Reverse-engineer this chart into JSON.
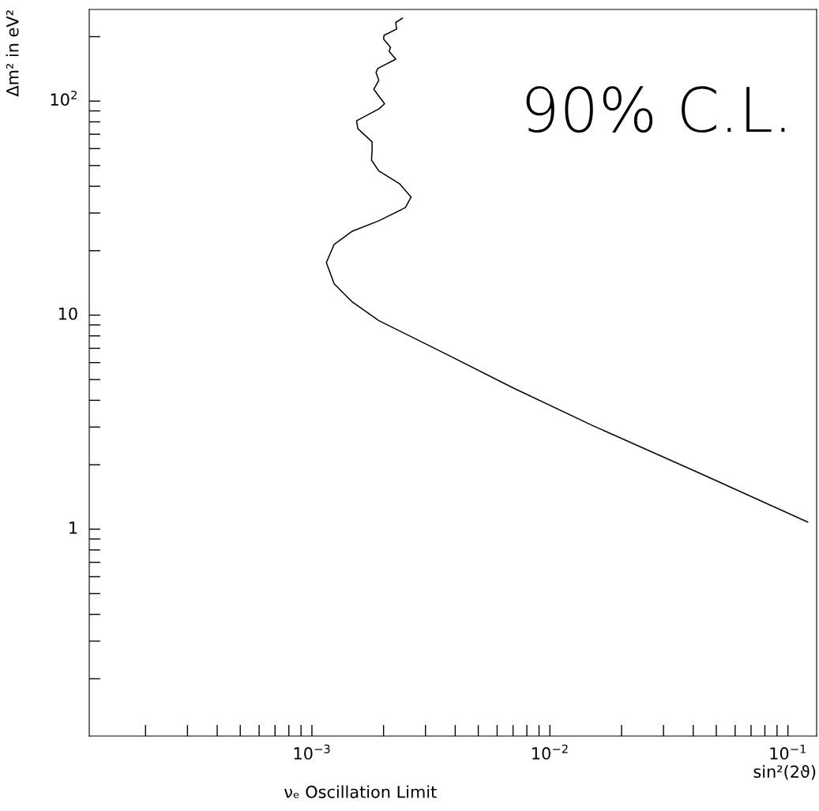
{
  "chart_data": {
    "type": "line",
    "xlabel": "sin²(2ϑ)",
    "ylabel": "Δm² in eV²",
    "annotations": [
      "νₑ Oscillation Limit",
      "90% C.L."
    ],
    "log": "xy",
    "grid": false,
    "marker": "none",
    "line_style": "solid",
    "xlim": [
      0.000116,
      0.132
    ],
    "ylim": [
      0.108,
      268
    ],
    "xticks": [
      {
        "value": 0.0002,
        "label": null
      },
      {
        "value": 0.0003,
        "label": null
      },
      {
        "value": 0.0004,
        "label": null
      },
      {
        "value": 0.0005,
        "label": null
      },
      {
        "value": 0.0006,
        "label": null
      },
      {
        "value": 0.0007,
        "label": null
      },
      {
        "value": 0.0008,
        "label": null
      },
      {
        "value": 0.0009,
        "label": null
      },
      {
        "value": 0.001,
        "label": "10$^{−3}$"
      },
      {
        "value": 0.002,
        "label": null
      },
      {
        "value": 0.003,
        "label": null
      },
      {
        "value": 0.004,
        "label": null
      },
      {
        "value": 0.005,
        "label": null
      },
      {
        "value": 0.006,
        "label": null
      },
      {
        "value": 0.007,
        "label": null
      },
      {
        "value": 0.008,
        "label": null
      },
      {
        "value": 0.009,
        "label": null
      },
      {
        "value": 0.01,
        "label": "10$^{−2}$"
      },
      {
        "value": 0.02,
        "label": null
      },
      {
        "value": 0.03,
        "label": null
      },
      {
        "value": 0.04,
        "label": null
      },
      {
        "value": 0.05,
        "label": null
      },
      {
        "value": 0.06,
        "label": null
      },
      {
        "value": 0.07,
        "label": null
      },
      {
        "value": 0.08,
        "label": null
      },
      {
        "value": 0.09,
        "label": null
      },
      {
        "value": 0.1,
        "label": "10$^{−1}$"
      }
    ],
    "yticks": [
      {
        "value": 0.2,
        "label": null
      },
      {
        "value": 0.3,
        "label": null
      },
      {
        "value": 0.4,
        "label": null
      },
      {
        "value": 0.5,
        "label": null
      },
      {
        "value": 0.6,
        "label": null
      },
      {
        "value": 0.7,
        "label": null
      },
      {
        "value": 0.8,
        "label": null
      },
      {
        "value": 0.9,
        "label": null
      },
      1,
      {
        "value": 2,
        "label": null
      },
      {
        "value": 3,
        "label": null
      },
      {
        "value": 4,
        "label": null
      },
      {
        "value": 5,
        "label": null
      },
      {
        "value": 6,
        "label": null
      },
      {
        "value": 7,
        "label": null
      },
      {
        "value": 8,
        "label": null
      },
      {
        "value": 9,
        "label": null
      },
      10,
      {
        "value": 20,
        "label": null
      },
      {
        "value": 30,
        "label": null
      },
      {
        "value": 40,
        "label": null
      },
      {
        "value": 50,
        "label": null
      },
      {
        "value": 60,
        "label": null
      },
      {
        "value": 70,
        "label": null
      },
      {
        "value": 80,
        "label": null
      },
      {
        "value": 90,
        "label": null
      },
      {
        "value": 100,
        "label": "10$^{2}$"
      },
      {
        "value": 200,
        "label": null
      }
    ],
    "series": [
      {
        "color": "#000000",
        "x": [
          0.0024,
          0.00225,
          0.00227,
          0.00201,
          0.002,
          0.00214,
          0.00211,
          0.00225,
          0.00189,
          0.00186,
          0.00191,
          0.00182,
          0.00202,
          0.00191,
          0.00154,
          0.00156,
          0.00179,
          0.00179,
          0.00178,
          0.00191,
          0.00234,
          0.00261,
          0.00247,
          0.00191,
          0.00148,
          0.00124,
          0.00115,
          0.00124,
          0.00148,
          0.00191,
          0.00371,
          0.00701,
          0.0151,
          0.0429,
          0.121
        ],
        "values": [
          244,
          233,
          217,
          203,
          195,
          178.5,
          171,
          157,
          142,
          136,
          125,
          113.5,
          97.2,
          91.9,
          80.9,
          74.3,
          64.5,
          59.3,
          53.0,
          47.2,
          41.0,
          35.6,
          31.8,
          27.6,
          24.7,
          21.4,
          17.6,
          14.0,
          11.5,
          9.43,
          6.53,
          4.57,
          3.05,
          1.82,
          1.08
        ]
      }
    ]
  }
}
